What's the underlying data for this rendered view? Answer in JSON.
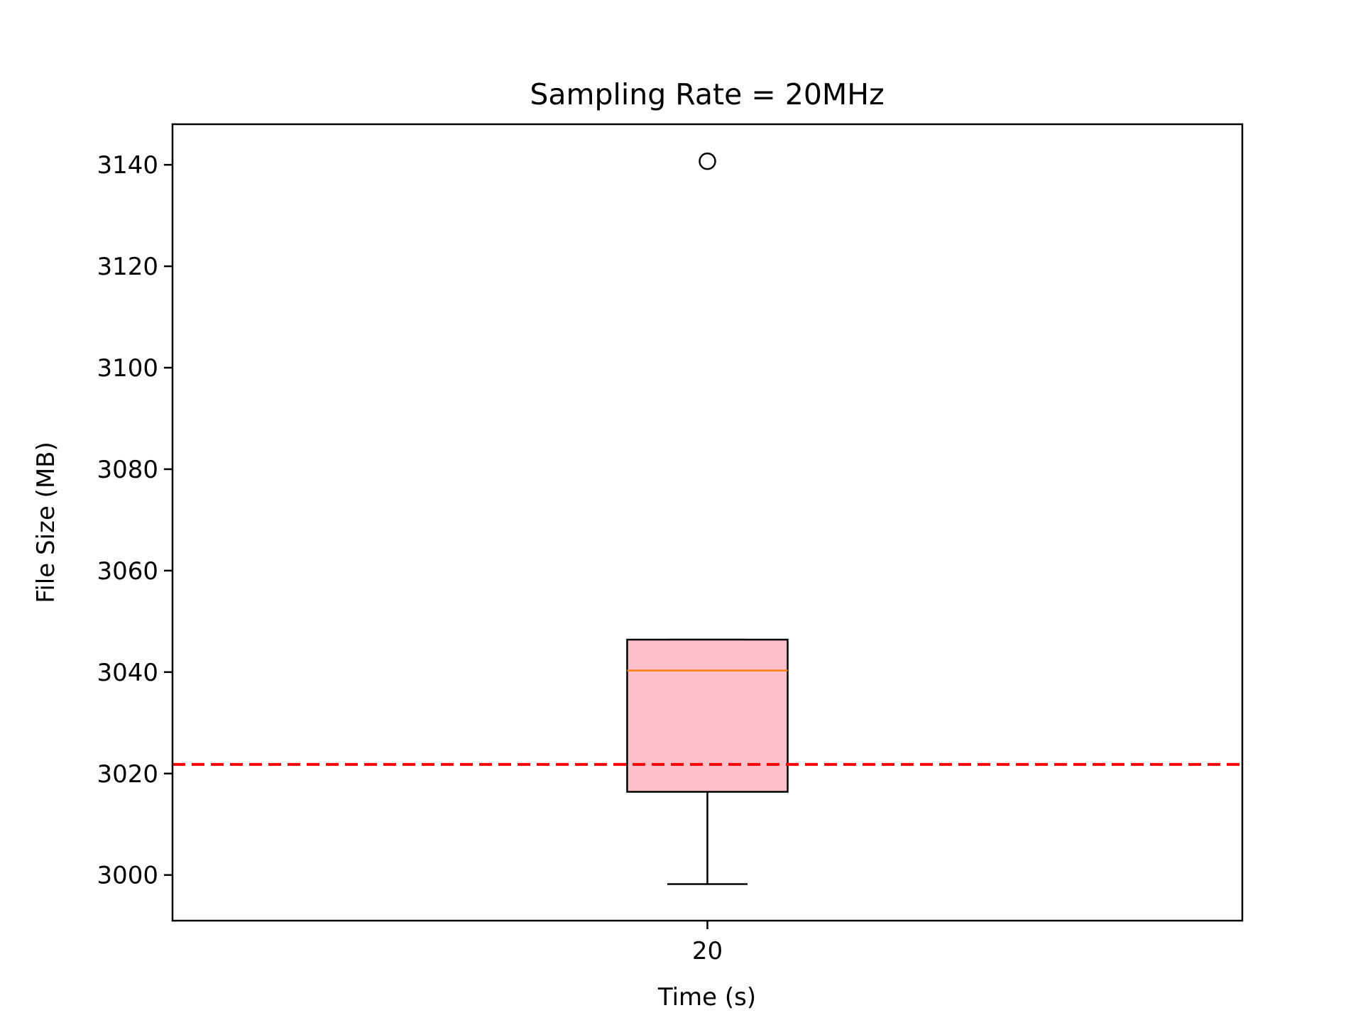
{
  "chart_data": {
    "type": "box",
    "title": "Sampling Rate = 20MHz",
    "xlabel": "Time (s)",
    "ylabel": "File Size (MB)",
    "categories": [
      "20"
    ],
    "ylim": [
      2991,
      3148
    ],
    "yticks": [
      3000,
      3020,
      3040,
      3060,
      3080,
      3100,
      3120,
      3140
    ],
    "ytick_labels": [
      "3000",
      "3020",
      "3040",
      "3060",
      "3080",
      "3100",
      "3120",
      "3140"
    ],
    "grid": false,
    "boxes": [
      {
        "category": "20",
        "whisker_low": 2998.2,
        "q1": 3016.4,
        "median": 3040.3,
        "q3": 3046.4,
        "whisker_high": 3046.4,
        "outliers": [
          3140.7
        ]
      }
    ],
    "reference_line": {
      "value": 3021.8,
      "style": "dashed"
    },
    "colors": {
      "box_fill": "#ffc0cb",
      "median": "#ff7f0e",
      "reference_line": "#ff0000",
      "axes": "#000000"
    }
  }
}
